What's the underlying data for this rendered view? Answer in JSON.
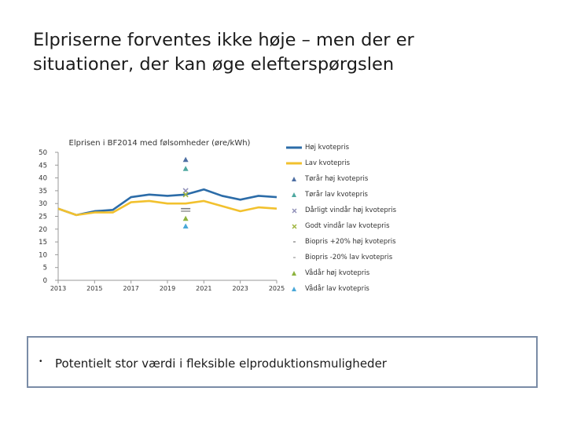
{
  "slide": {
    "title_line1": "Elpriserne forventes ikke høje – men der er",
    "title_line2": "situationer, der kan øge elefterspørgslen"
  },
  "note": {
    "bullet": "•",
    "text": "Potentielt stor værdi i fleksible elproduktionsmuligheder"
  },
  "chart_data": {
    "type": "line",
    "title": "Elprisen i BF2014 med følsomheder (øre/kWh)",
    "xlabel": "",
    "ylabel": "",
    "xlim": [
      2013,
      2025
    ],
    "ylim": [
      0,
      50
    ],
    "x_ticks": [
      "2013",
      "2015",
      "2017",
      "2019",
      "2021",
      "2023",
      "2025"
    ],
    "y_ticks": [
      "0",
      "5",
      "10",
      "15",
      "20",
      "25",
      "30",
      "35",
      "40",
      "45",
      "50"
    ],
    "series": [
      {
        "name": "Høj kvotepris",
        "kind": "line",
        "color": "#2c6ca8",
        "x": [
          2013,
          2014,
          2015,
          2016,
          2017,
          2018,
          2019,
          2020,
          2021,
          2022,
          2023,
          2024,
          2025
        ],
        "values": [
          28,
          25.5,
          27,
          27.5,
          32.5,
          33.5,
          33,
          33.5,
          35.5,
          33,
          31.5,
          33,
          32.5
        ]
      },
      {
        "name": "Lav kvotepris",
        "kind": "line",
        "color": "#f2c12e",
        "x": [
          2013,
          2014,
          2015,
          2016,
          2017,
          2018,
          2019,
          2020,
          2021,
          2022,
          2023,
          2024,
          2025
        ],
        "values": [
          28,
          25.5,
          26.5,
          26.5,
          30.5,
          31,
          30,
          30,
          31,
          29,
          27,
          28.5,
          28
        ]
      },
      {
        "name": "Tørår høj kvotepris",
        "kind": "point",
        "marker": "triangle",
        "color": "#4e6fa3",
        "x": [
          2020
        ],
        "values": [
          47
        ]
      },
      {
        "name": "Tørår lav kvotepris",
        "kind": "point",
        "marker": "triangle",
        "color": "#4ea8a0",
        "x": [
          2020
        ],
        "values": [
          43.5
        ]
      },
      {
        "name": "Dårligt vindår høj kvotepris",
        "kind": "point",
        "marker": "cross",
        "color": "#8f8fb8",
        "x": [
          2020
        ],
        "values": [
          35
        ]
      },
      {
        "name": "Godt vindår lav kvotepris",
        "kind": "point",
        "marker": "cross",
        "color": "#9fb53e",
        "x": [
          2020
        ],
        "values": [
          33.5
        ]
      },
      {
        "name": "Biopris +20% høj kvotepris",
        "kind": "point",
        "marker": "dash",
        "color": "#7a7a7a",
        "x": [
          2020
        ],
        "values": [
          28
        ]
      },
      {
        "name": "Biopris -20% lav kvotepris",
        "kind": "point",
        "marker": "dash",
        "color": "#9a9a9a",
        "x": [
          2020
        ],
        "values": [
          27
        ]
      },
      {
        "name": "Vådår høj kvotepris",
        "kind": "point",
        "marker": "triangle",
        "color": "#8db33e",
        "x": [
          2020
        ],
        "values": [
          24
        ]
      },
      {
        "name": "Vådår lav kvotepris",
        "kind": "point",
        "marker": "triangle",
        "color": "#4aa8d8",
        "x": [
          2020
        ],
        "values": [
          21
        ]
      }
    ]
  }
}
